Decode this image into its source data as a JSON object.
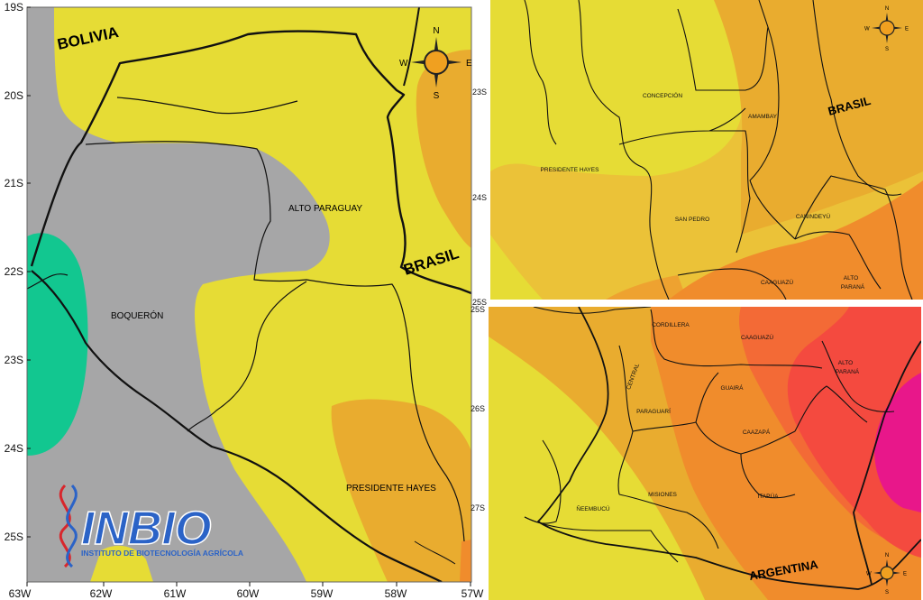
{
  "colors": {
    "gray": "#a6a6a7",
    "green": "#12c790",
    "yellow": "#e6dc35",
    "yellow_orange": "#ebc238",
    "light_orange": "#e9ac2f",
    "orange": "#f08c2c",
    "red": "#f44a3f",
    "magenta": "#e8178a",
    "border": "#111111",
    "logo_blue": "#2b63c7"
  },
  "left_map": {
    "lat_ticks": [
      "19S",
      "20S",
      "21S",
      "22S",
      "23S",
      "24S",
      "25S"
    ],
    "lon_ticks": [
      "63W",
      "62W",
      "61W",
      "60W",
      "59W",
      "58W",
      "57W"
    ],
    "country_labels": {
      "bolivia": "BOLIVIA",
      "brasil": "BRASIL"
    },
    "dept_labels": {
      "alto_paraguay": "ALTO PARAGUAY",
      "boqueron": "BOQUERÓN",
      "presidente_hayes": "PRESIDENTE HAYES"
    },
    "compass": {
      "n": "N",
      "s": "S",
      "e": "E",
      "w": "W"
    }
  },
  "logo": {
    "title": "INBIO",
    "subtitle": "INSTITUTO DE BIOTECNOLOGÍA AGRÍCOLA"
  },
  "top_right_map": {
    "lat_ticks": [
      "23S",
      "24S",
      "25S"
    ],
    "country_label": "BRASIL",
    "dept_labels": {
      "concepcion": "CONCEPCIÓN",
      "amambay": "AMAMBAY",
      "presidente_hayes": "PRESIDENTE HAYES",
      "san_pedro": "SAN PEDRO",
      "canindeyu": "CANINDEYÚ",
      "caaguazu": "CAAGUAZÚ",
      "alto": "ALTO",
      "parana": "PARANÁ"
    },
    "compass": {
      "n": "N",
      "s": "S",
      "e": "E",
      "w": "W"
    }
  },
  "bottom_right_map": {
    "lat_ticks": [
      "25S",
      "26S",
      "27S"
    ],
    "country_label": "ARGENTINA",
    "dept_labels": {
      "cordillera": "CORDILLERA",
      "caaguazu": "CAAGUAZÚ",
      "central": "CENTRAL",
      "alto": "ALTO",
      "parana": "PARANÁ",
      "guaira": "GUAIRÁ",
      "paraguari": "PARAGUARÍ",
      "caazapa": "CAAZAPÁ",
      "neembucu": "ÑEEMBUCÚ",
      "misiones": "MISIONES",
      "itapua": "ITAPÚA"
    },
    "compass": {
      "n": "N",
      "s": "S",
      "e": "E",
      "w": "W"
    }
  }
}
